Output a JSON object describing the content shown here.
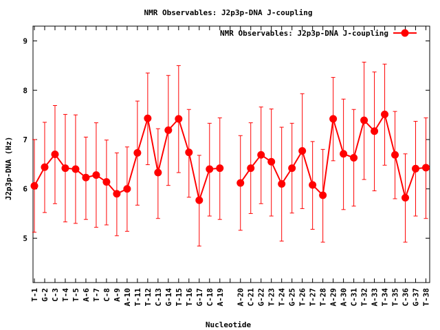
{
  "chart_data": {
    "type": "line",
    "title": "NMR Observables: J2p3p-DNA J-coupling",
    "xlabel": "Nucleotide",
    "ylabel": "J2p3p-DNA (Hz)",
    "ylim": [
      4.1,
      9.3
    ],
    "yticks": [
      5,
      6,
      7,
      8,
      9
    ],
    "categories": [
      "T-1",
      "G-2",
      "C-3",
      "T-4",
      "T-5",
      "A-6",
      "T-7",
      "C-8",
      "A-9",
      "A-10",
      "T-11",
      "T-12",
      "C-13",
      "G-14",
      "T-15",
      "T-16",
      "G-17",
      "C-18",
      "A-19",
      "",
      "A-20",
      "C-21",
      "G-22",
      "T-23",
      "T-24",
      "G-25",
      "T-26",
      "T-27",
      "T-28",
      "A-29",
      "A-30",
      "C-31",
      "T-32",
      "A-33",
      "T-34",
      "T-35",
      "C-36",
      "G-37",
      "T-38"
    ],
    "legend": {
      "position": "top-right",
      "entries": [
        "NMR Observables: J2p3p-DNA J-coupling"
      ]
    },
    "grid": false,
    "color": "#ff0000",
    "series": [
      {
        "name": "NMR Observables: J2p3p-DNA J-coupling",
        "values": [
          6.06,
          6.44,
          6.7,
          6.42,
          6.4,
          6.23,
          6.28,
          6.14,
          5.9,
          6.0,
          6.73,
          7.43,
          6.33,
          7.19,
          7.42,
          6.74,
          5.77,
          6.4,
          6.42,
          null,
          6.12,
          6.42,
          6.69,
          6.55,
          6.1,
          6.42,
          6.77,
          6.08,
          5.87,
          7.42,
          6.71,
          6.63,
          7.39,
          7.17,
          7.51,
          6.69,
          5.82,
          6.41,
          6.43
        ],
        "err_low": [
          5.12,
          5.52,
          5.7,
          5.33,
          5.3,
          5.38,
          5.22,
          5.27,
          5.05,
          5.14,
          5.67,
          6.49,
          5.4,
          6.07,
          6.33,
          5.83,
          4.84,
          5.45,
          5.38,
          null,
          5.16,
          5.5,
          5.7,
          5.45,
          4.94,
          5.51,
          5.6,
          5.18,
          4.92,
          6.57,
          5.58,
          5.65,
          6.19,
          5.96,
          6.48,
          5.8,
          4.92,
          5.45,
          5.4
        ],
        "err_high": [
          7.0,
          7.35,
          7.69,
          7.51,
          7.5,
          7.05,
          7.34,
          6.99,
          6.73,
          6.85,
          7.78,
          8.35,
          7.22,
          8.3,
          8.5,
          7.61,
          6.68,
          7.33,
          7.44,
          null,
          7.08,
          7.34,
          7.66,
          7.62,
          7.25,
          7.33,
          7.93,
          6.96,
          6.8,
          8.26,
          7.82,
          7.61,
          8.57,
          8.37,
          8.53,
          7.57,
          6.71,
          7.37,
          7.44
        ]
      }
    ]
  }
}
